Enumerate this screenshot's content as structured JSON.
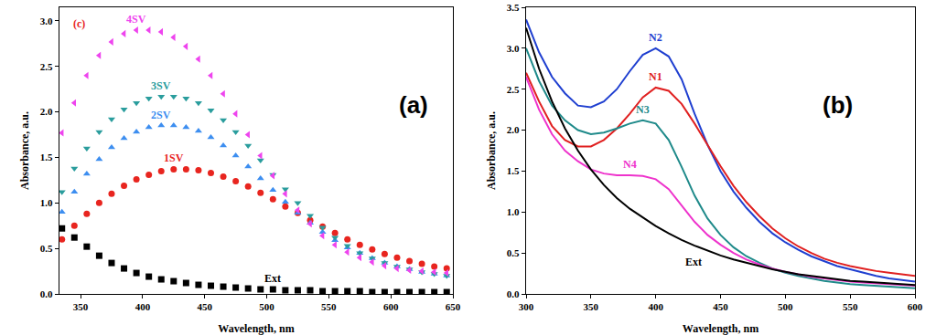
{
  "chart_data": [
    {
      "type": "scatter",
      "x_label": "Wavelength, nm",
      "y_label": "Absorbance, a.u.",
      "annotations": [
        "(c)",
        "(a)"
      ],
      "grid": false,
      "x": [
        335,
        345,
        355,
        365,
        375,
        385,
        395,
        405,
        415,
        425,
        435,
        445,
        455,
        465,
        475,
        485,
        495,
        505,
        515,
        525,
        535,
        545,
        555,
        565,
        575,
        585,
        595,
        605,
        615,
        625,
        635,
        645
      ],
      "xlim": [
        333,
        650
      ],
      "xticks": [
        350,
        400,
        450,
        500,
        550,
        600,
        650
      ],
      "ylim": [
        0,
        3.15
      ],
      "yticks": [
        {
          "value": 0,
          "label": "0.0"
        },
        {
          "value": 0.5,
          "label": "0.5"
        },
        {
          "value": 1,
          "label": "1.0"
        },
        {
          "value": 1.5,
          "label": "1.5"
        },
        {
          "value": 2,
          "label": "2.0"
        },
        {
          "value": 2.5,
          "label": "2.5"
        },
        {
          "value": 3,
          "label": "3.0"
        }
      ],
      "series": [
        {
          "name": "Ext",
          "color": "#000000",
          "marker": "square",
          "values": [
            0.72,
            0.62,
            0.52,
            0.42,
            0.34,
            0.28,
            0.23,
            0.19,
            0.16,
            0.14,
            0.12,
            0.1,
            0.09,
            0.08,
            0.07,
            0.06,
            0.05,
            0.05,
            0.04,
            0.04,
            0.04,
            0.03,
            0.03,
            0.03,
            0.03,
            0.02,
            0.02,
            0.02,
            0.02,
            0.02,
            0.02,
            0.02
          ]
        },
        {
          "name": "1SV",
          "color": "#e8251f",
          "marker": "circle",
          "values": [
            0.6,
            0.75,
            0.88,
            1.0,
            1.1,
            1.19,
            1.26,
            1.31,
            1.35,
            1.37,
            1.37,
            1.36,
            1.33,
            1.29,
            1.24,
            1.18,
            1.11,
            1.04,
            0.96,
            0.89,
            0.81,
            0.74,
            0.67,
            0.6,
            0.54,
            0.49,
            0.44,
            0.4,
            0.36,
            0.33,
            0.3,
            0.28
          ]
        },
        {
          "name": "2SV",
          "color": "#3d8ef0",
          "marker": "triangle-up",
          "values": [
            0.9,
            1.12,
            1.32,
            1.48,
            1.61,
            1.71,
            1.78,
            1.83,
            1.85,
            1.85,
            1.83,
            1.79,
            1.72,
            1.63,
            1.52,
            1.4,
            1.27,
            1.14,
            1.01,
            0.89,
            0.78,
            0.68,
            0.59,
            0.51,
            0.45,
            0.39,
            0.34,
            0.3,
            0.27,
            0.24,
            0.22,
            0.2
          ]
        },
        {
          "name": "3SV",
          "color": "#2a9d9d",
          "marker": "triangle-down",
          "values": [
            1.12,
            1.38,
            1.6,
            1.78,
            1.92,
            2.03,
            2.1,
            2.15,
            2.17,
            2.17,
            2.15,
            2.1,
            2.02,
            1.91,
            1.78,
            1.63,
            1.47,
            1.31,
            1.15,
            1.0,
            0.86,
            0.73,
            0.62,
            0.53,
            0.45,
            0.39,
            0.34,
            0.3,
            0.27,
            0.24,
            0.22,
            0.2
          ]
        },
        {
          "name": "4SV",
          "color": "#ee44ee",
          "marker": "triangle-left",
          "values": [
            1.77,
            2.1,
            2.4,
            2.62,
            2.77,
            2.86,
            2.9,
            2.9,
            2.88,
            2.82,
            2.72,
            2.58,
            2.4,
            2.2,
            1.98,
            1.75,
            1.52,
            1.3,
            1.1,
            0.92,
            0.77,
            0.64,
            0.54,
            0.46,
            0.4,
            0.35,
            0.31,
            0.28,
            0.26,
            0.25,
            0.24,
            0.23
          ]
        }
      ]
    },
    {
      "type": "line",
      "x_label": "Wavelength, nm",
      "y_label": "Absorbance, a.u.",
      "annotations": [
        "(b)"
      ],
      "grid": false,
      "x": [
        300,
        310,
        320,
        330,
        340,
        350,
        360,
        370,
        380,
        390,
        400,
        410,
        420,
        430,
        440,
        450,
        460,
        470,
        480,
        490,
        500,
        510,
        520,
        530,
        540,
        550,
        560,
        570,
        580,
        590,
        600
      ],
      "xlim": [
        300,
        600
      ],
      "xticks": [
        300,
        350,
        400,
        450,
        500,
        550,
        600
      ],
      "ylim": [
        0,
        3.5
      ],
      "yticks": [
        {
          "value": 0,
          "label": "0.0"
        },
        {
          "value": 0.5,
          "label": "0.5"
        },
        {
          "value": 1,
          "label": "1.0"
        },
        {
          "value": 1.5,
          "label": "1.5"
        },
        {
          "value": 2,
          "label": "2.0"
        },
        {
          "value": 2.5,
          "label": "2.5"
        },
        {
          "value": 3,
          "label": "3.0"
        },
        {
          "value": 3.5,
          "label": "3.5"
        }
      ],
      "series": [
        {
          "name": "N2",
          "color": "#1f3fd0",
          "line_style": "solid",
          "values": [
            3.35,
            2.95,
            2.65,
            2.45,
            2.3,
            2.28,
            2.35,
            2.5,
            2.72,
            2.92,
            3.0,
            2.9,
            2.62,
            2.2,
            1.82,
            1.5,
            1.25,
            1.05,
            0.88,
            0.74,
            0.63,
            0.54,
            0.46,
            0.4,
            0.34,
            0.3,
            0.26,
            0.22,
            0.19,
            0.17,
            0.15
          ]
        },
        {
          "name": "N1",
          "color": "#e02020",
          "line_style": "solid",
          "values": [
            2.7,
            2.35,
            2.05,
            1.88,
            1.8,
            1.8,
            1.88,
            2.02,
            2.2,
            2.4,
            2.52,
            2.48,
            2.32,
            2.08,
            1.82,
            1.56,
            1.32,
            1.12,
            0.95,
            0.8,
            0.68,
            0.58,
            0.5,
            0.43,
            0.38,
            0.34,
            0.31,
            0.28,
            0.26,
            0.24,
            0.22
          ]
        },
        {
          "name": "N3",
          "color": "#1f8a8a",
          "line_style": "solid",
          "values": [
            3.0,
            2.6,
            2.3,
            2.12,
            2.0,
            1.95,
            1.97,
            2.02,
            2.08,
            2.12,
            2.08,
            1.88,
            1.55,
            1.2,
            0.92,
            0.72,
            0.57,
            0.46,
            0.38,
            0.31,
            0.26,
            0.22,
            0.19,
            0.16,
            0.14,
            0.12,
            0.11,
            0.1,
            0.09,
            0.08,
            0.07
          ]
        },
        {
          "name": "N4",
          "color": "#ee33cc",
          "line_style": "solid",
          "values": [
            2.65,
            2.25,
            1.95,
            1.75,
            1.62,
            1.52,
            1.47,
            1.45,
            1.45,
            1.44,
            1.4,
            1.28,
            1.08,
            0.88,
            0.72,
            0.6,
            0.5,
            0.42,
            0.36,
            0.31,
            0.27,
            0.24,
            0.21,
            0.19,
            0.17,
            0.15,
            0.14,
            0.13,
            0.12,
            0.11,
            0.1
          ]
        },
        {
          "name": "Ext",
          "color": "#000000",
          "line_style": "solid",
          "values": [
            3.25,
            2.75,
            2.35,
            2.02,
            1.75,
            1.52,
            1.33,
            1.17,
            1.04,
            0.93,
            0.83,
            0.74,
            0.66,
            0.59,
            0.53,
            0.47,
            0.42,
            0.38,
            0.34,
            0.3,
            0.27,
            0.24,
            0.22,
            0.2,
            0.18,
            0.16,
            0.15,
            0.14,
            0.13,
            0.12,
            0.11
          ]
        }
      ]
    }
  ]
}
